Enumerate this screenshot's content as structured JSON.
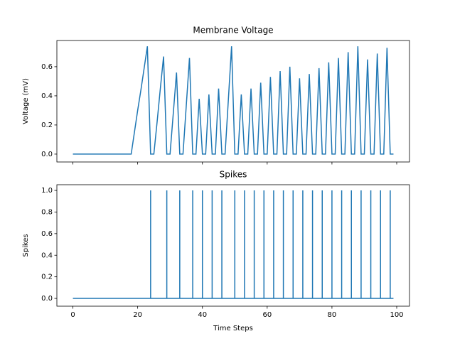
{
  "chart_data": [
    {
      "type": "line",
      "title": "Membrane Voltage",
      "ylabel": "Voltage (mV)",
      "color": "#1f77b4",
      "x": [
        0,
        1,
        2,
        3,
        4,
        5,
        6,
        7,
        8,
        9,
        10,
        11,
        12,
        13,
        14,
        15,
        16,
        17,
        18,
        19,
        20,
        21,
        22,
        23,
        24,
        25,
        26,
        27,
        28,
        29,
        30,
        31,
        32,
        33,
        34,
        35,
        36,
        37,
        38,
        39,
        40,
        41,
        42,
        43,
        44,
        45,
        46,
        47,
        48,
        49,
        50,
        51,
        52,
        53,
        54,
        55,
        56,
        57,
        58,
        59,
        60,
        61,
        62,
        63,
        64,
        65,
        66,
        67,
        68,
        69,
        70,
        71,
        72,
        73,
        74,
        75,
        76,
        77,
        78,
        79,
        80,
        81,
        82,
        83,
        84,
        85,
        86,
        87,
        88,
        89,
        90,
        91,
        92,
        93,
        94,
        95,
        96,
        97,
        98,
        99
      ],
      "values": [
        0,
        0,
        0,
        0,
        0,
        0,
        0,
        0,
        0,
        0,
        0,
        0,
        0,
        0,
        0,
        0,
        0,
        0,
        0,
        0.15,
        0.3,
        0.44,
        0.59,
        0.74,
        0,
        0,
        0.22,
        0.45,
        0.67,
        0,
        0,
        0.28,
        0.56,
        0,
        0,
        0.33,
        0.66,
        0,
        0,
        0.38,
        0,
        0,
        0.41,
        0,
        0,
        0.45,
        0,
        0,
        0.37,
        0.74,
        0,
        0,
        0.41,
        0,
        0,
        0.45,
        0,
        0,
        0.49,
        0,
        0,
        0.53,
        0,
        0,
        0.57,
        0,
        0,
        0.6,
        0,
        0,
        0.52,
        0,
        0,
        0.55,
        0,
        0,
        0.59,
        0,
        0,
        0.63,
        0,
        0,
        0.66,
        0,
        0,
        0.7,
        0,
        0,
        0.74,
        0,
        0,
        0.65,
        0,
        0,
        0.69,
        0,
        0,
        0.73,
        0,
        0
      ],
      "xlim": [
        -4.95,
        103.95
      ],
      "xticks": [
        0,
        20,
        40,
        60,
        80,
        100
      ],
      "ylim": [
        -0.054,
        0.78
      ],
      "yticks": [
        0.0,
        0.2,
        0.4,
        0.6
      ]
    },
    {
      "type": "spikes",
      "title": "Spikes",
      "ylabel": "Spikes",
      "xlabel": "Time Steps",
      "color": "#1f77b4",
      "x": [
        0,
        1,
        2,
        3,
        4,
        5,
        6,
        7,
        8,
        9,
        10,
        11,
        12,
        13,
        14,
        15,
        16,
        17,
        18,
        19,
        20,
        21,
        22,
        23,
        24,
        25,
        26,
        27,
        28,
        29,
        30,
        31,
        32,
        33,
        34,
        35,
        36,
        37,
        38,
        39,
        40,
        41,
        42,
        43,
        44,
        45,
        46,
        47,
        48,
        49,
        50,
        51,
        52,
        53,
        54,
        55,
        56,
        57,
        58,
        59,
        60,
        61,
        62,
        63,
        64,
        65,
        66,
        67,
        68,
        69,
        70,
        71,
        72,
        73,
        74,
        75,
        76,
        77,
        78,
        79,
        80,
        81,
        82,
        83,
        84,
        85,
        86,
        87,
        88,
        89,
        90,
        91,
        92,
        93,
        94,
        95,
        96,
        97,
        98,
        99
      ],
      "values": [
        0,
        0,
        0,
        0,
        0,
        0,
        0,
        0,
        0,
        0,
        0,
        0,
        0,
        0,
        0,
        0,
        0,
        0,
        0,
        0,
        0,
        0,
        0,
        0,
        1,
        0,
        0,
        0,
        0,
        1,
        0,
        0,
        0,
        1,
        0,
        0,
        0,
        1,
        0,
        0,
        1,
        0,
        0,
        1,
        0,
        0,
        1,
        0,
        0,
        0,
        1,
        0,
        0,
        1,
        0,
        0,
        1,
        0,
        0,
        1,
        0,
        0,
        1,
        0,
        0,
        1,
        0,
        0,
        1,
        0,
        0,
        1,
        0,
        0,
        1,
        0,
        0,
        1,
        0,
        0,
        1,
        0,
        0,
        1,
        0,
        0,
        1,
        0,
        0,
        1,
        0,
        0,
        1,
        0,
        0,
        1,
        0,
        0,
        1,
        0
      ],
      "xlim": [
        -4.95,
        103.95
      ],
      "xticks": [
        0,
        20,
        40,
        60,
        80,
        100
      ],
      "ylim": [
        -0.072,
        1.053
      ],
      "yticks": [
        0.0,
        0.2,
        0.4,
        0.6,
        0.8,
        1.0
      ]
    }
  ]
}
